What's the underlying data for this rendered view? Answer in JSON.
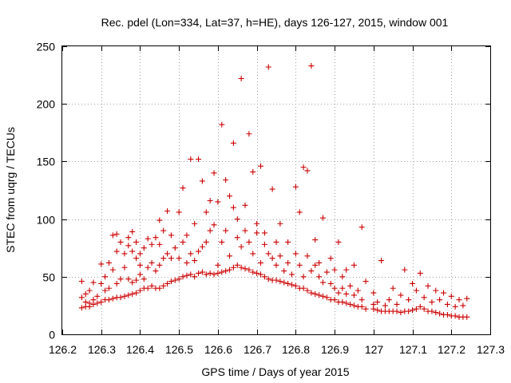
{
  "chart_data": {
    "type": "scatter",
    "title": "Rec. pdel (Lon=334, Lat=37, h=HE), days 126-127, 2015, window 001",
    "xlabel": "GPS time / Days of year 2015",
    "ylabel": "STEC from uqrg / TECUs",
    "xlim": [
      126.2,
      127.3
    ],
    "ylim": [
      0,
      250
    ],
    "xticks": [
      "126.2",
      "126.3",
      "126.4",
      "126.5",
      "126.6",
      "126.7",
      "126.8",
      "126.9",
      "127",
      "127.1",
      "127.2",
      "127.3"
    ],
    "yticks": [
      "0",
      "50",
      "100",
      "150",
      "200",
      "250"
    ],
    "grid": true,
    "legend": "none",
    "marker": "plus",
    "color": "#cc0000",
    "series": [
      {
        "points": [
          [
            126.25,
            23
          ],
          [
            126.25,
            32
          ],
          [
            126.25,
            46
          ],
          [
            126.26,
            24
          ],
          [
            126.26,
            28
          ],
          [
            126.26,
            35
          ],
          [
            126.27,
            24
          ],
          [
            126.27,
            27
          ],
          [
            126.27,
            38
          ],
          [
            126.28,
            26
          ],
          [
            126.28,
            45
          ],
          [
            126.28,
            30
          ],
          [
            126.29,
            27
          ],
          [
            126.29,
            33
          ],
          [
            126.3,
            28
          ],
          [
            126.3,
            44
          ],
          [
            126.3,
            61
          ],
          [
            126.31,
            30
          ],
          [
            126.31,
            38
          ],
          [
            126.31,
            50
          ],
          [
            126.32,
            30
          ],
          [
            126.32,
            40
          ],
          [
            126.32,
            62
          ],
          [
            126.33,
            31
          ],
          [
            126.33,
            56
          ],
          [
            126.33,
            86
          ],
          [
            126.34,
            32
          ],
          [
            126.34,
            44
          ],
          [
            126.34,
            72
          ],
          [
            126.34,
            87
          ],
          [
            126.35,
            32
          ],
          [
            126.35,
            48
          ],
          [
            126.35,
            80
          ],
          [
            126.36,
            33
          ],
          [
            126.36,
            58
          ],
          [
            126.36,
            70
          ],
          [
            126.37,
            34
          ],
          [
            126.37,
            48
          ],
          [
            126.37,
            77
          ],
          [
            126.37,
            84
          ],
          [
            126.38,
            35
          ],
          [
            126.38,
            45
          ],
          [
            126.38,
            72
          ],
          [
            126.38,
            89
          ],
          [
            126.39,
            36
          ],
          [
            126.39,
            47
          ],
          [
            126.39,
            66
          ],
          [
            126.39,
            80
          ],
          [
            126.4,
            38
          ],
          [
            126.4,
            52
          ],
          [
            126.4,
            60
          ],
          [
            126.4,
            70
          ],
          [
            126.41,
            40
          ],
          [
            126.41,
            48
          ],
          [
            126.41,
            75
          ],
          [
            126.42,
            40
          ],
          [
            126.42,
            58
          ],
          [
            126.42,
            83
          ],
          [
            126.43,
            42
          ],
          [
            126.43,
            62
          ],
          [
            126.43,
            78
          ],
          [
            126.44,
            40
          ],
          [
            126.44,
            55
          ],
          [
            126.44,
            84
          ],
          [
            126.45,
            40
          ],
          [
            126.45,
            60
          ],
          [
            126.45,
            78
          ],
          [
            126.45,
            99
          ],
          [
            126.46,
            42
          ],
          [
            126.46,
            66
          ],
          [
            126.46,
            90
          ],
          [
            126.47,
            44
          ],
          [
            126.47,
            70
          ],
          [
            126.47,
            107
          ],
          [
            126.48,
            46
          ],
          [
            126.48,
            66
          ],
          [
            126.48,
            86
          ],
          [
            126.49,
            47
          ],
          [
            126.49,
            75
          ],
          [
            126.5,
            48
          ],
          [
            126.5,
            66
          ],
          [
            126.5,
            106
          ],
          [
            126.51,
            50
          ],
          [
            126.51,
            80
          ],
          [
            126.51,
            127
          ],
          [
            126.52,
            51
          ],
          [
            126.52,
            62
          ],
          [
            126.52,
            86
          ],
          [
            126.53,
            52
          ],
          [
            126.53,
            70
          ],
          [
            126.53,
            152
          ],
          [
            126.54,
            50
          ],
          [
            126.54,
            64
          ],
          [
            126.54,
            96
          ],
          [
            126.55,
            53
          ],
          [
            126.55,
            72
          ],
          [
            126.55,
            152
          ],
          [
            126.56,
            54
          ],
          [
            126.56,
            76
          ],
          [
            126.56,
            133
          ],
          [
            126.57,
            52
          ],
          [
            126.57,
            80
          ],
          [
            126.57,
            106
          ],
          [
            126.58,
            53
          ],
          [
            126.58,
            90
          ],
          [
            126.58,
            116
          ],
          [
            126.59,
            52
          ],
          [
            126.59,
            95
          ],
          [
            126.59,
            140
          ],
          [
            126.6,
            53
          ],
          [
            126.6,
            60
          ],
          [
            126.6,
            115
          ],
          [
            126.61,
            54
          ],
          [
            126.61,
            80
          ],
          [
            126.61,
            182
          ],
          [
            126.62,
            55
          ],
          [
            126.62,
            90
          ],
          [
            126.62,
            134
          ],
          [
            126.63,
            56
          ],
          [
            126.63,
            68
          ],
          [
            126.63,
            120
          ],
          [
            126.64,
            58
          ],
          [
            126.64,
            110
          ],
          [
            126.64,
            166
          ],
          [
            126.65,
            60
          ],
          [
            126.65,
            84
          ],
          [
            126.65,
            100
          ],
          [
            126.66,
            58
          ],
          [
            126.66,
            76
          ],
          [
            126.66,
            222
          ],
          [
            126.67,
            57
          ],
          [
            126.67,
            90
          ],
          [
            126.67,
            112
          ],
          [
            126.68,
            56
          ],
          [
            126.68,
            80
          ],
          [
            126.68,
            174
          ],
          [
            126.69,
            54
          ],
          [
            126.69,
            70
          ],
          [
            126.69,
            141
          ],
          [
            126.7,
            53
          ],
          [
            126.7,
            88
          ],
          [
            126.7,
            96
          ],
          [
            126.71,
            52
          ],
          [
            126.71,
            62
          ],
          [
            126.71,
            146
          ],
          [
            126.72,
            50
          ],
          [
            126.72,
            78
          ],
          [
            126.72,
            88
          ],
          [
            126.73,
            48
          ],
          [
            126.73,
            70
          ],
          [
            126.73,
            232
          ],
          [
            126.74,
            47
          ],
          [
            126.74,
            66
          ],
          [
            126.74,
            126
          ],
          [
            126.75,
            47
          ],
          [
            126.75,
            60
          ],
          [
            126.75,
            80
          ],
          [
            126.76,
            46
          ],
          [
            126.76,
            68
          ],
          [
            126.76,
            96
          ],
          [
            126.77,
            45
          ],
          [
            126.77,
            55
          ],
          [
            126.78,
            44
          ],
          [
            126.78,
            62
          ],
          [
            126.78,
            80
          ],
          [
            126.79,
            43
          ],
          [
            126.79,
            52
          ],
          [
            126.8,
            42
          ],
          [
            126.8,
            70
          ],
          [
            126.8,
            128
          ],
          [
            126.81,
            40
          ],
          [
            126.81,
            60
          ],
          [
            126.81,
            106
          ],
          [
            126.82,
            40
          ],
          [
            126.82,
            50
          ],
          [
            126.82,
            145
          ],
          [
            126.83,
            38
          ],
          [
            126.83,
            68
          ],
          [
            126.83,
            142
          ],
          [
            126.84,
            36
          ],
          [
            126.84,
            55
          ],
          [
            126.84,
            233
          ],
          [
            126.85,
            35
          ],
          [
            126.85,
            60
          ],
          [
            126.85,
            82
          ],
          [
            126.86,
            34
          ],
          [
            126.86,
            50
          ],
          [
            126.86,
            62
          ],
          [
            126.87,
            33
          ],
          [
            126.87,
            45
          ],
          [
            126.87,
            101
          ],
          [
            126.88,
            32
          ],
          [
            126.88,
            54
          ],
          [
            126.89,
            30
          ],
          [
            126.89,
            44
          ],
          [
            126.89,
            66
          ],
          [
            126.9,
            30
          ],
          [
            126.9,
            40
          ],
          [
            126.9,
            56
          ],
          [
            126.91,
            28
          ],
          [
            126.91,
            36
          ],
          [
            126.91,
            80
          ],
          [
            126.92,
            28
          ],
          [
            126.92,
            40
          ],
          [
            126.92,
            50
          ],
          [
            126.93,
            27
          ],
          [
            126.93,
            35
          ],
          [
            126.93,
            56
          ],
          [
            126.94,
            26
          ],
          [
            126.94,
            42
          ],
          [
            126.95,
            25
          ],
          [
            126.95,
            34
          ],
          [
            126.95,
            60
          ],
          [
            126.96,
            24
          ],
          [
            126.96,
            38
          ],
          [
            126.97,
            24
          ],
          [
            126.97,
            30
          ],
          [
            126.97,
            93
          ],
          [
            126.98,
            22
          ],
          [
            126.98,
            46
          ],
          [
            127.0,
            22
          ],
          [
            127.0,
            26
          ],
          [
            127.0,
            36
          ],
          [
            127.01,
            21
          ],
          [
            127.01,
            28
          ],
          [
            127.02,
            20
          ],
          [
            127.02,
            64
          ],
          [
            127.03,
            20
          ],
          [
            127.03,
            25
          ],
          [
            127.04,
            20
          ],
          [
            127.04,
            30
          ],
          [
            127.05,
            20
          ],
          [
            127.05,
            40
          ],
          [
            127.06,
            20
          ],
          [
            127.06,
            26
          ],
          [
            127.07,
            19
          ],
          [
            127.07,
            34
          ],
          [
            127.08,
            20
          ],
          [
            127.08,
            56
          ],
          [
            127.09,
            20
          ],
          [
            127.09,
            30
          ],
          [
            127.1,
            21
          ],
          [
            127.1,
            44
          ],
          [
            127.11,
            22
          ],
          [
            127.11,
            38
          ],
          [
            127.12,
            24
          ],
          [
            127.12,
            53
          ],
          [
            127.13,
            22
          ],
          [
            127.13,
            32
          ],
          [
            127.14,
            20
          ],
          [
            127.14,
            42
          ],
          [
            127.15,
            20
          ],
          [
            127.15,
            28
          ],
          [
            127.16,
            19
          ],
          [
            127.16,
            38
          ],
          [
            127.17,
            18
          ],
          [
            127.17,
            30
          ],
          [
            127.18,
            17
          ],
          [
            127.18,
            36
          ],
          [
            127.19,
            17
          ],
          [
            127.19,
            26
          ],
          [
            127.2,
            16
          ],
          [
            127.2,
            33
          ],
          [
            127.21,
            16
          ],
          [
            127.21,
            24
          ],
          [
            127.22,
            15
          ],
          [
            127.22,
            30
          ],
          [
            127.23,
            15
          ],
          [
            127.23,
            25
          ],
          [
            127.24,
            15
          ],
          [
            127.24,
            31
          ]
        ]
      }
    ]
  }
}
